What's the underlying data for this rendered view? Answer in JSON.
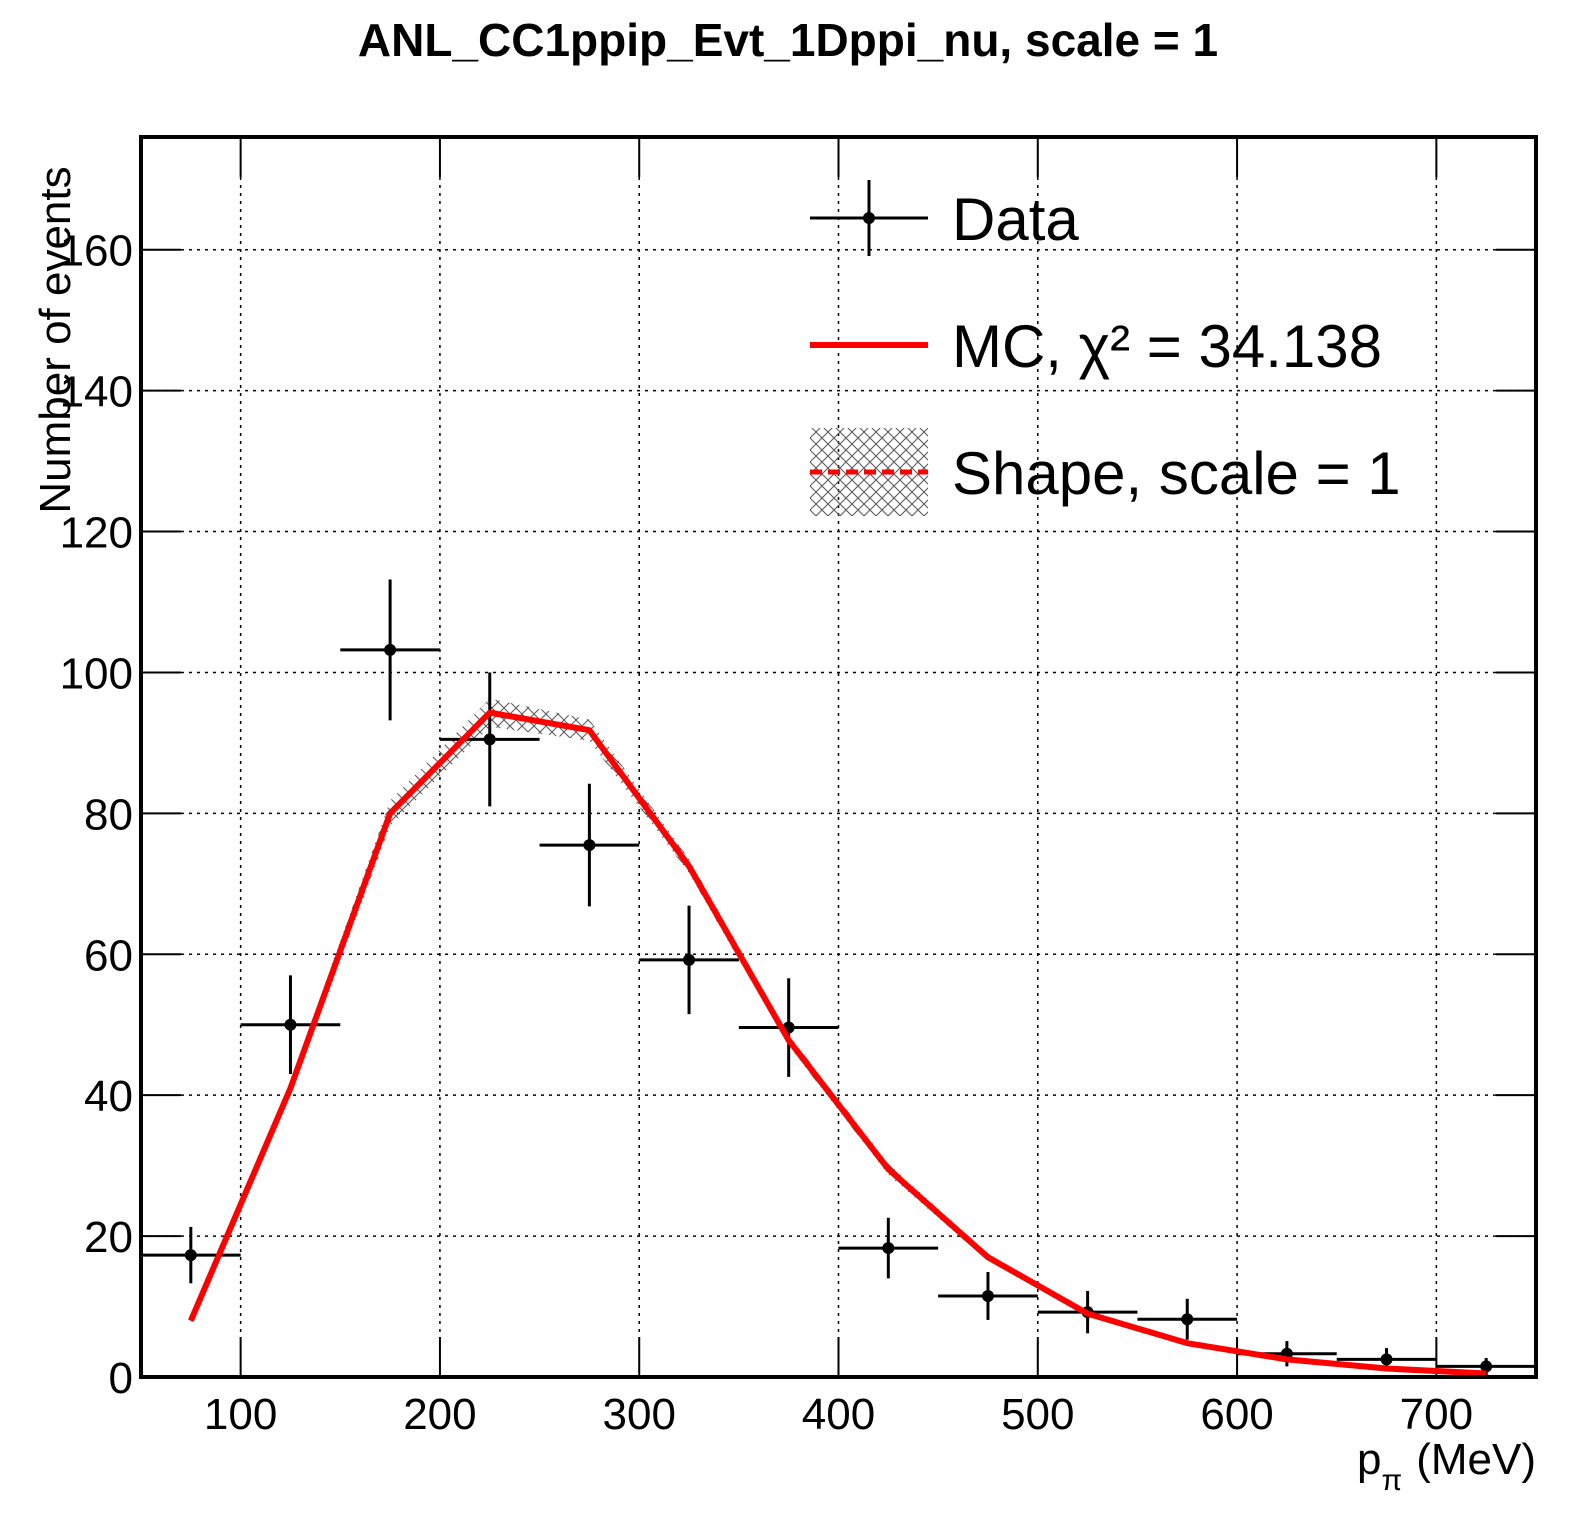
{
  "chart_data": {
    "type": "histogram",
    "title": "ANL_CC1ppip_Evt_1Dppi_nu, scale = 1",
    "x_label": "p",
    "x_label_sub": "π",
    "x_label_unit": "(MeV)",
    "y_label": "Number of events",
    "bins": [
      50,
      100,
      150,
      200,
      250,
      300,
      350,
      400,
      450,
      500,
      550,
      600,
      650,
      700,
      750
    ],
    "series": [
      {
        "name": "Data",
        "color": "#000000",
        "style": "points",
        "values": [
          17.3,
          50,
          103.2,
          90.5,
          75.5,
          59.2,
          49.6,
          18.3,
          11.5,
          9.2,
          8.2,
          3.3,
          2.5,
          1.5
        ],
        "errors": [
          4,
          7,
          10,
          9.5,
          8.7,
          7.7,
          7,
          4.3,
          3.4,
          3,
          2.9,
          1.8,
          1.6,
          1.2
        ]
      },
      {
        "name": "MC, χ² = 34.138",
        "color": "#ff0000",
        "style": "line",
        "values": [
          8,
          41,
          80,
          94.3,
          91.8,
          72.5,
          47.8,
          29.5,
          17,
          9,
          4.8,
          2.5,
          1.2,
          0.5
        ]
      },
      {
        "name": "Shape, scale = 1",
        "color": "#ff0000",
        "style": "band",
        "values": [
          8,
          41,
          80,
          94.3,
          91.8,
          72.5,
          47.8,
          29.5,
          17,
          9,
          4.8,
          2.5,
          1.2,
          0.5
        ],
        "errors": [
          0.3,
          1,
          1.8,
          2,
          1.5,
          1,
          0.8,
          0.8,
          0.5,
          0.3,
          0.2,
          0.1,
          0.05,
          0.03
        ]
      }
    ],
    "xlim": [
      50,
      750
    ],
    "ylim": [
      0,
      176
    ],
    "xticks": [
      100,
      200,
      300,
      400,
      500,
      600,
      700
    ],
    "yticks": [
      0,
      20,
      40,
      60,
      80,
      100,
      120,
      140,
      160
    ],
    "grid": true
  }
}
